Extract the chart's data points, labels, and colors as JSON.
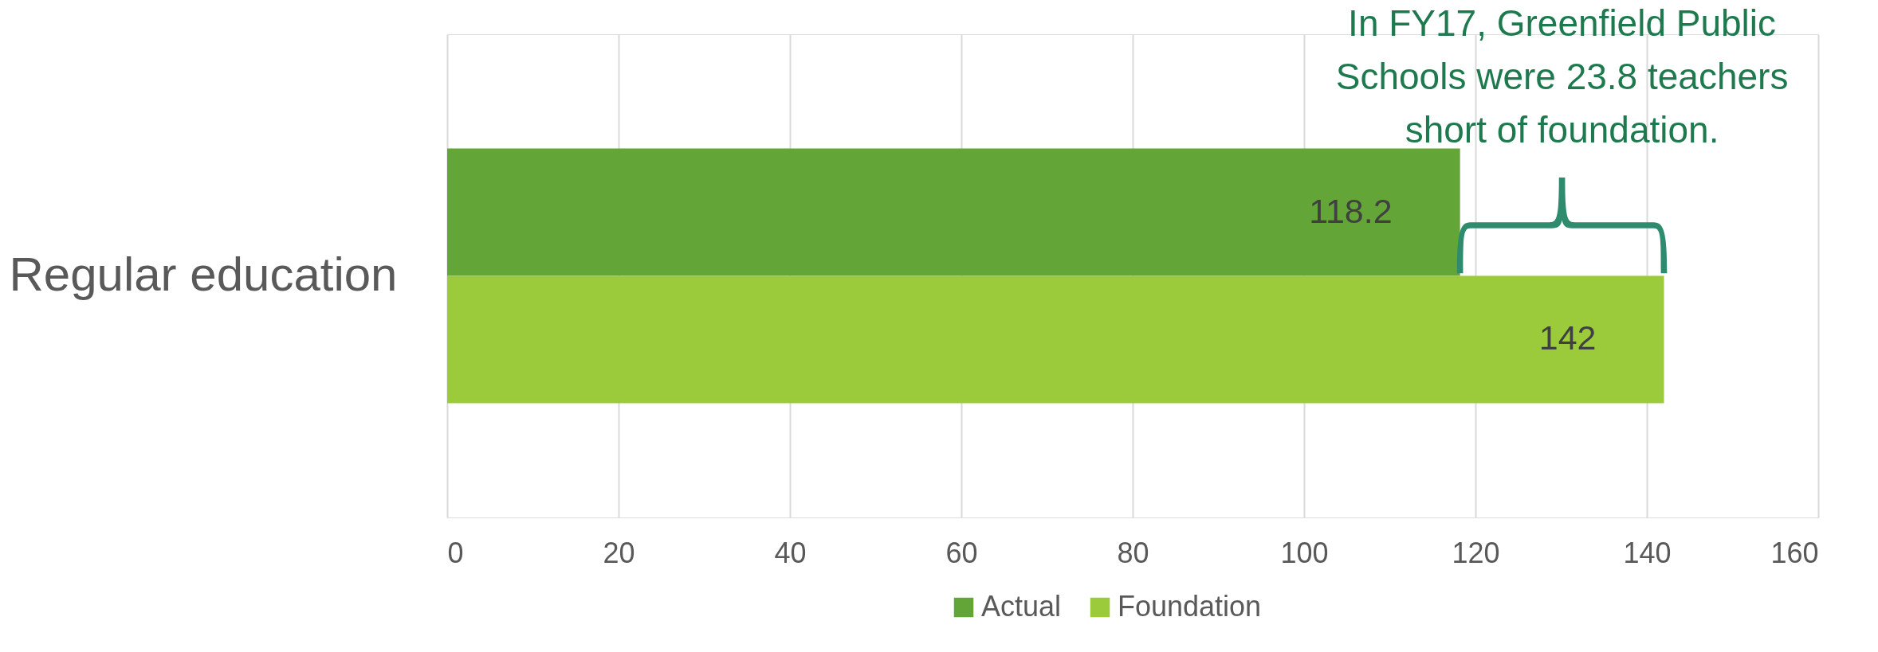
{
  "chart_data": {
    "type": "bar",
    "orientation": "horizontal",
    "categories": [
      "Regular education"
    ],
    "series": [
      {
        "name": "Actual",
        "color": "#63a537",
        "values": [
          118.2
        ]
      },
      {
        "name": "Foundation",
        "color": "#9bcb3b",
        "values": [
          142
        ]
      }
    ],
    "xlim": [
      0,
      160
    ],
    "xticks": [
      0,
      20,
      40,
      60,
      80,
      100,
      120,
      140,
      160
    ],
    "grid": "x",
    "legend": "bottom",
    "data_labels": true,
    "annotations": [
      "In FY17, Greenfield Public Schools were 23.8 teachers short of foundation."
    ]
  }
}
